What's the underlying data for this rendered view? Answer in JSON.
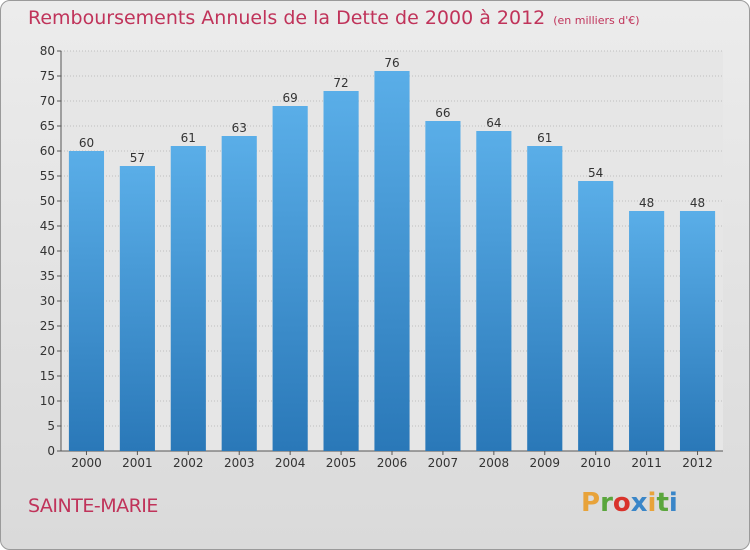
{
  "header": {
    "title": "Remboursements Annuels de la Dette de 2000 à 2012",
    "unit": "(en milliers d'€)"
  },
  "footer": {
    "commune": "SAINTE-MARIE",
    "brand": "Proxiti"
  },
  "colors": {
    "title": "#c0335a",
    "bar_top": "#5aaee8",
    "bar_bottom": "#2a78b8"
  },
  "chart_data": {
    "type": "bar",
    "title": "Remboursements Annuels de la Dette de 2000 à 2012",
    "categories": [
      "2000",
      "2001",
      "2002",
      "2003",
      "2004",
      "2005",
      "2006",
      "2007",
      "2008",
      "2009",
      "2010",
      "2011",
      "2012"
    ],
    "values": [
      60,
      57,
      61,
      63,
      69,
      72,
      76,
      66,
      64,
      61,
      54,
      48,
      48
    ],
    "ylim": [
      0,
      80
    ],
    "yticks": [
      0,
      5,
      10,
      15,
      20,
      25,
      30,
      35,
      40,
      45,
      50,
      55,
      60,
      65,
      70,
      75,
      80
    ],
    "grid": true,
    "data_labels": true
  }
}
